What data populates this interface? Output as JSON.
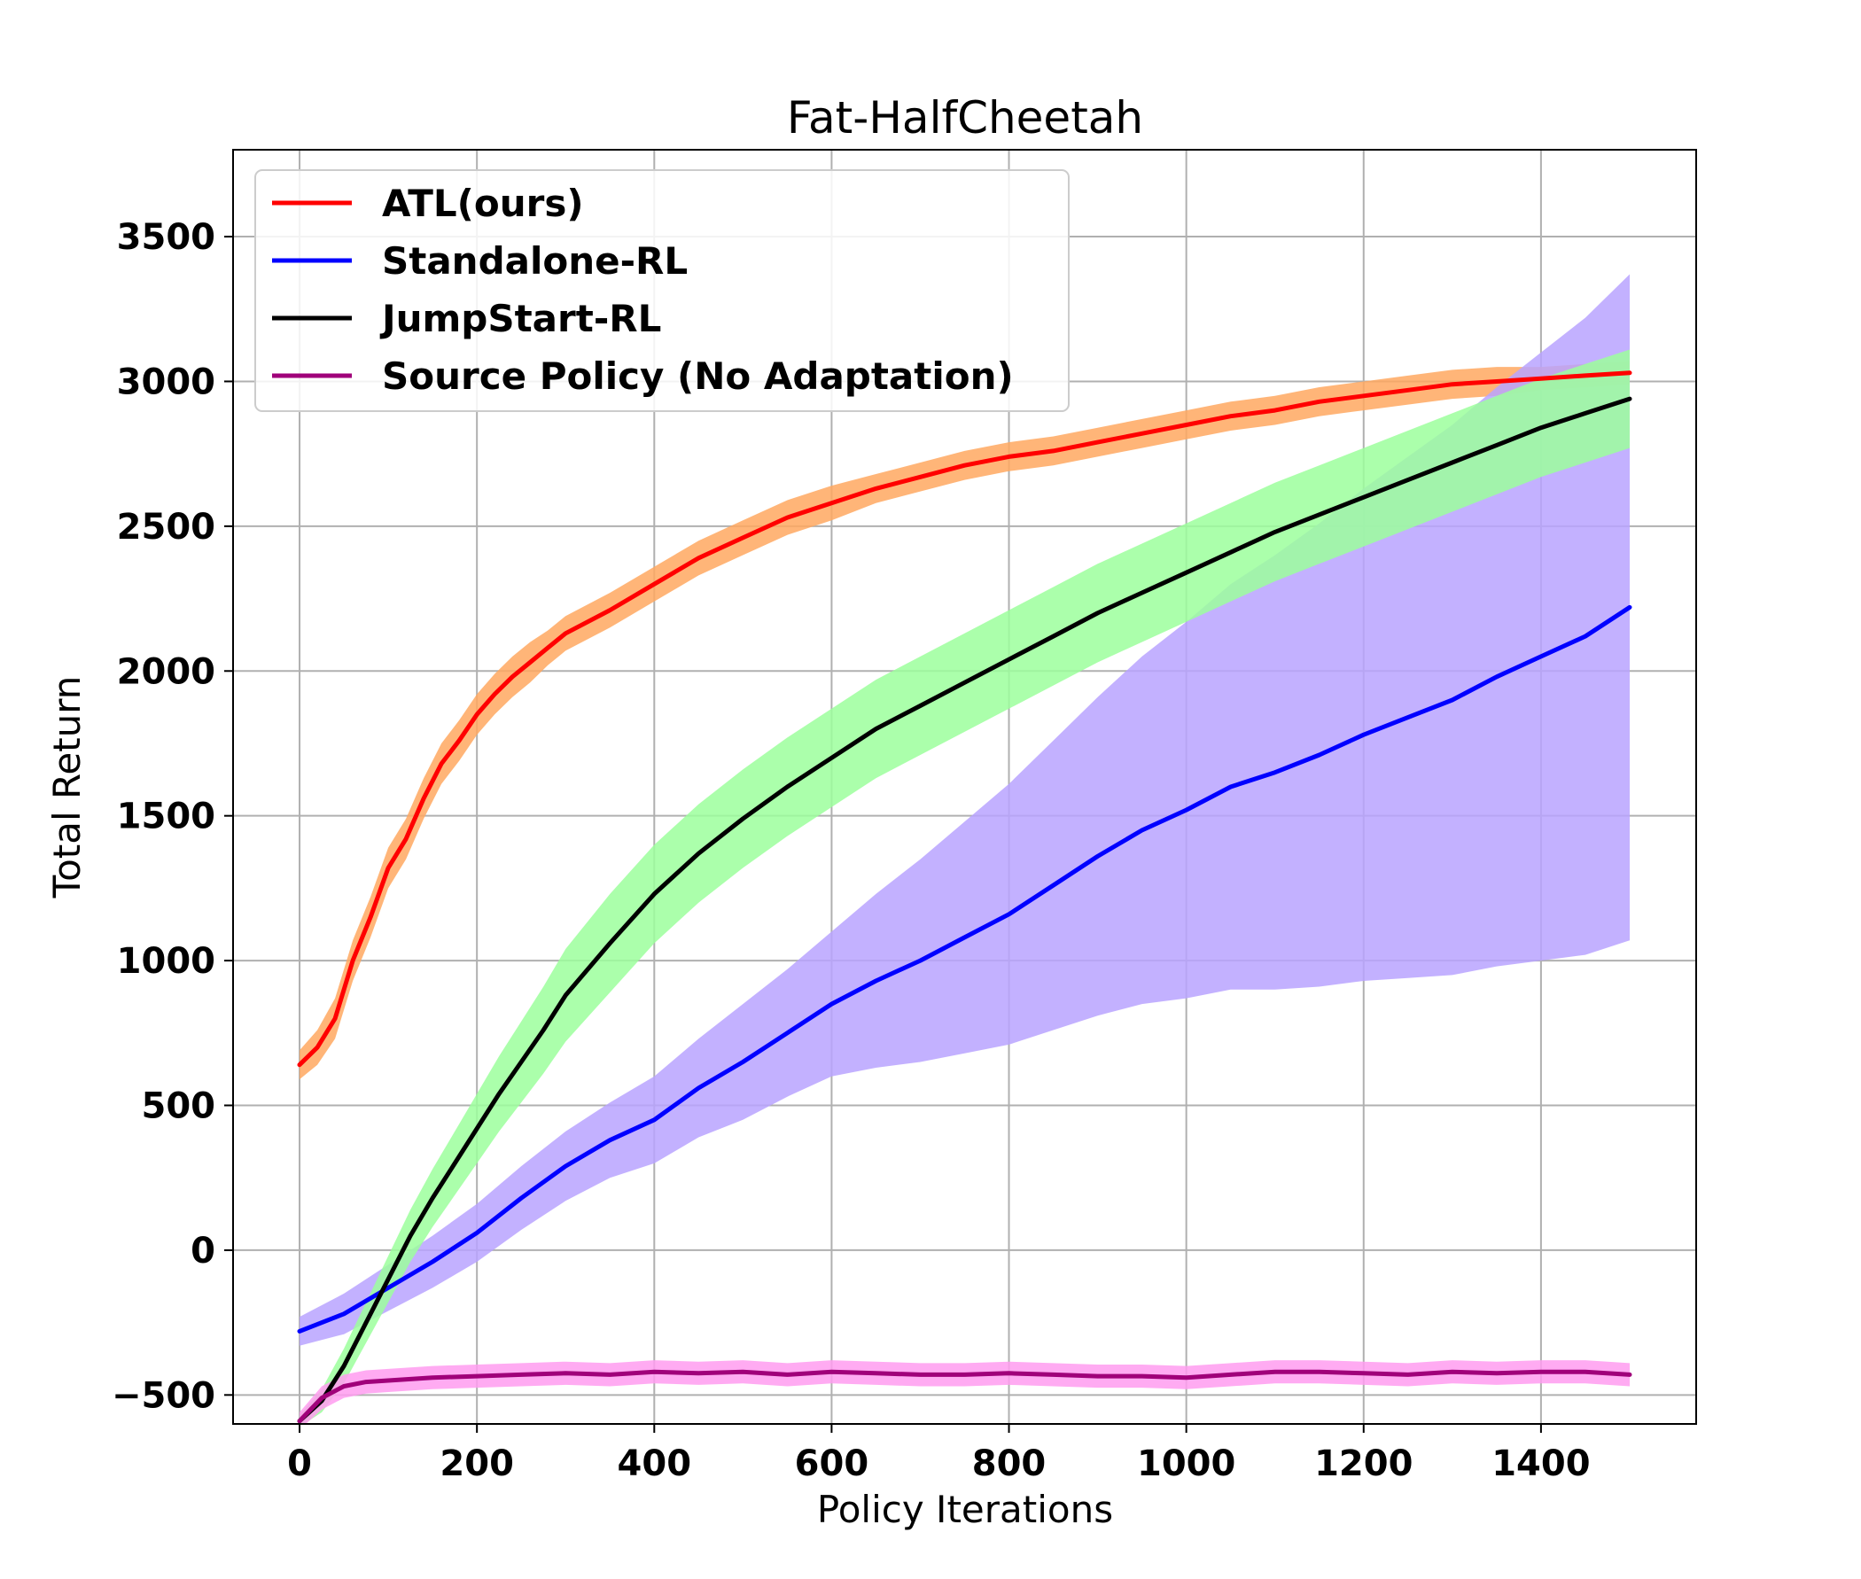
{
  "chart_data": {
    "type": "line",
    "title": "Fat-HalfCheetah",
    "xlabel": "Policy Iterations",
    "ylabel": "Total Return",
    "xlim": [
      -75,
      1575
    ],
    "ylim": [
      -600,
      3800
    ],
    "xticks": [
      0,
      200,
      400,
      600,
      800,
      1000,
      1200,
      1400
    ],
    "yticks": [
      -500,
      0,
      500,
      1000,
      1500,
      2000,
      2500,
      3000,
      3500
    ],
    "xtick_labels": [
      "0",
      "200",
      "400",
      "600",
      "800",
      "1000",
      "1200",
      "1400"
    ],
    "ytick_labels": [
      "−500",
      "0",
      "500",
      "1000",
      "1500",
      "2000",
      "2500",
      "3000",
      "3500"
    ],
    "grid": true,
    "legend_position": "top-left",
    "series": [
      {
        "name": "ATL(ours)",
        "color": "#ff0000",
        "band_color": "#ffa860",
        "x": [
          0,
          20,
          40,
          60,
          80,
          100,
          120,
          140,
          160,
          180,
          200,
          220,
          240,
          260,
          280,
          300,
          350,
          400,
          450,
          500,
          550,
          600,
          650,
          700,
          750,
          800,
          850,
          900,
          950,
          1000,
          1050,
          1100,
          1150,
          1200,
          1250,
          1300,
          1350,
          1400,
          1450,
          1500
        ],
        "y": [
          640,
          700,
          800,
          1000,
          1150,
          1320,
          1420,
          1560,
          1680,
          1760,
          1850,
          1920,
          1980,
          2030,
          2080,
          2130,
          2210,
          2300,
          2390,
          2460,
          2530,
          2580,
          2630,
          2670,
          2710,
          2740,
          2760,
          2790,
          2820,
          2850,
          2880,
          2900,
          2930,
          2950,
          2970,
          2990,
          3000,
          3010,
          3020,
          3030
        ],
        "spread": [
          50,
          60,
          70,
          70,
          70,
          70,
          70,
          70,
          70,
          70,
          70,
          70,
          70,
          70,
          60,
          60,
          60,
          60,
          60,
          60,
          60,
          60,
          50,
          50,
          50,
          50,
          50,
          50,
          50,
          50,
          50,
          50,
          50,
          50,
          50,
          50,
          50,
          40,
          40,
          40
        ]
      },
      {
        "name": "Standalone-RL",
        "color": "#0000ff",
        "band_color": "#b9a3ff",
        "x": [
          0,
          50,
          100,
          150,
          200,
          250,
          300,
          350,
          400,
          450,
          500,
          550,
          600,
          650,
          700,
          750,
          800,
          850,
          900,
          950,
          1000,
          1050,
          1100,
          1150,
          1200,
          1250,
          1300,
          1350,
          1400,
          1450,
          1500
        ],
        "y": [
          -280,
          -220,
          -130,
          -40,
          60,
          180,
          290,
          380,
          450,
          560,
          650,
          750,
          850,
          930,
          1000,
          1080,
          1160,
          1260,
          1360,
          1450,
          1520,
          1600,
          1650,
          1710,
          1780,
          1840,
          1900,
          1980,
          2050,
          2120,
          2220
        ],
        "spread": [
          50,
          70,
          80,
          90,
          100,
          110,
          120,
          130,
          150,
          170,
          200,
          220,
          250,
          300,
          350,
          400,
          450,
          500,
          550,
          600,
          650,
          700,
          750,
          800,
          850,
          900,
          950,
          1000,
          1050,
          1100,
          1150
        ]
      },
      {
        "name": "JumpStart-RL",
        "color": "#000000",
        "band_color": "#9cff9c",
        "x": [
          0,
          25,
          50,
          75,
          100,
          125,
          150,
          175,
          200,
          225,
          250,
          275,
          300,
          350,
          400,
          450,
          500,
          550,
          600,
          650,
          700,
          750,
          800,
          850,
          900,
          950,
          1000,
          1050,
          1100,
          1150,
          1200,
          1250,
          1300,
          1350,
          1400,
          1450,
          1500
        ],
        "y": [
          -590,
          -520,
          -400,
          -250,
          -100,
          50,
          180,
          300,
          420,
          540,
          650,
          760,
          880,
          1060,
          1230,
          1370,
          1490,
          1600,
          1700,
          1800,
          1880,
          1960,
          2040,
          2120,
          2200,
          2270,
          2340,
          2410,
          2480,
          2540,
          2600,
          2660,
          2720,
          2780,
          2840,
          2890,
          2940
        ],
        "spread": [
          20,
          40,
          60,
          70,
          80,
          90,
          100,
          110,
          120,
          130,
          140,
          150,
          160,
          170,
          170,
          170,
          170,
          170,
          170,
          170,
          170,
          170,
          170,
          170,
          170,
          170,
          170,
          170,
          170,
          170,
          170,
          170,
          170,
          170,
          170,
          170,
          170
        ]
      },
      {
        "name": "Source Policy (No Adaptation)",
        "color": "#a0007a",
        "band_color": "#ff9cf0",
        "x": [
          0,
          25,
          50,
          75,
          100,
          150,
          200,
          250,
          300,
          350,
          400,
          450,
          500,
          550,
          600,
          650,
          700,
          750,
          800,
          850,
          900,
          950,
          1000,
          1050,
          1100,
          1150,
          1200,
          1250,
          1300,
          1350,
          1400,
          1450,
          1500
        ],
        "y": [
          -590,
          -510,
          -470,
          -455,
          -450,
          -440,
          -435,
          -430,
          -425,
          -430,
          -420,
          -425,
          -420,
          -430,
          -420,
          -425,
          -430,
          -430,
          -425,
          -430,
          -435,
          -435,
          -440,
          -430,
          -420,
          -420,
          -425,
          -430,
          -420,
          -425,
          -420,
          -420,
          -430
        ],
        "spread": [
          30,
          40,
          40,
          40,
          40,
          40,
          40,
          40,
          40,
          40,
          40,
          40,
          40,
          40,
          40,
          40,
          40,
          40,
          40,
          40,
          40,
          40,
          40,
          40,
          40,
          40,
          40,
          40,
          40,
          40,
          40,
          40,
          40
        ]
      }
    ]
  }
}
